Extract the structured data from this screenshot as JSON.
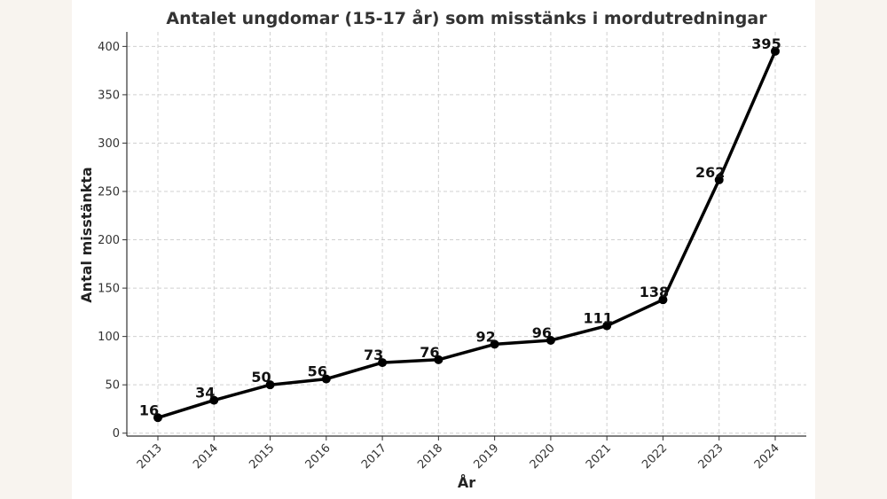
{
  "chart_data": {
    "type": "line",
    "title": "Antalet ungdomar (15-17 år) som misstänks i mordutredningar",
    "xlabel": "År",
    "ylabel": "Antal misstänkta",
    "categories": [
      "2013",
      "2014",
      "2015",
      "2016",
      "2017",
      "2018",
      "2019",
      "2020",
      "2021",
      "2022",
      "2023",
      "2024"
    ],
    "series": [
      {
        "values": [
          16,
          34,
          50,
          56,
          73,
          76,
          92,
          96,
          111,
          138,
          262,
          395
        ]
      }
    ],
    "data_labels": [
      "16",
      "34",
      "50",
      "56",
      "73",
      "76",
      "92",
      "96",
      "111",
      "138",
      "262",
      "395"
    ],
    "yticks": [
      0,
      50,
      100,
      150,
      200,
      250,
      300,
      350,
      400
    ],
    "ylim": [
      -3,
      415
    ],
    "grid": true,
    "line_color": "#000000",
    "background": "#ffffff",
    "page_background": "#f8f4ef"
  }
}
